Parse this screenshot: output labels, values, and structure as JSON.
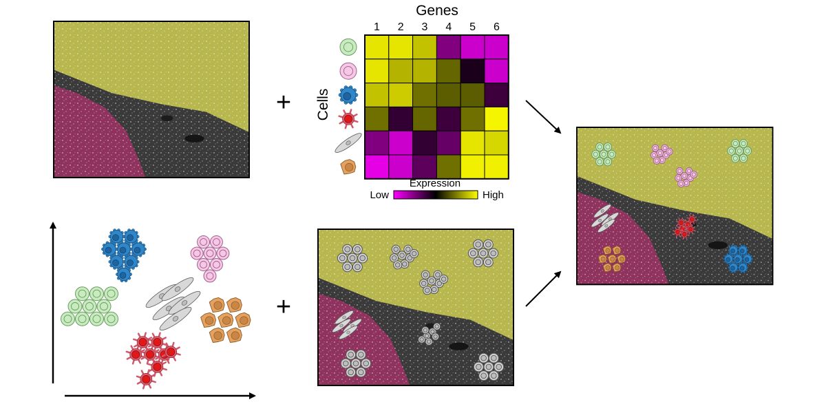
{
  "heatmap": {
    "title": "Genes",
    "row_label": "Cells",
    "gene_numbers": [
      "1",
      "2",
      "3",
      "4",
      "5",
      "6"
    ],
    "cell_types": [
      "green-cell",
      "pink-cell",
      "blue-cell",
      "red-cell",
      "spindle-cell",
      "orange-cell"
    ],
    "expression": [
      [
        0.95,
        0.95,
        0.88,
        0.25,
        0.1,
        0.1
      ],
      [
        0.95,
        0.85,
        0.85,
        0.7,
        0.45,
        0.1
      ],
      [
        0.88,
        0.9,
        0.72,
        0.68,
        0.68,
        0.38
      ],
      [
        0.72,
        0.4,
        0.7,
        0.38,
        0.72,
        0.98
      ],
      [
        0.25,
        0.1,
        0.4,
        0.3,
        0.95,
        0.92
      ],
      [
        0.05,
        0.1,
        0.32,
        0.72,
        0.97,
        0.97
      ]
    ]
  },
  "colorbar": {
    "title": "Expression",
    "low_label": "Low",
    "high_label": "High",
    "low_color": "#ff00ff",
    "mid_color": "#000000",
    "high_color": "#ffff00"
  },
  "operators": [
    "+",
    "+"
  ],
  "cell_colors": {
    "green": "#c8ecc0",
    "pink": "#f6c8e6",
    "blue": "#2f86c8",
    "red": "#e01818",
    "spindle": "#d8d8d8",
    "orange": "#e4a160"
  },
  "region_colors": {
    "tumor": "#c8c850",
    "stroma": "#b0306c",
    "tissue": "#3a3a3a"
  }
}
